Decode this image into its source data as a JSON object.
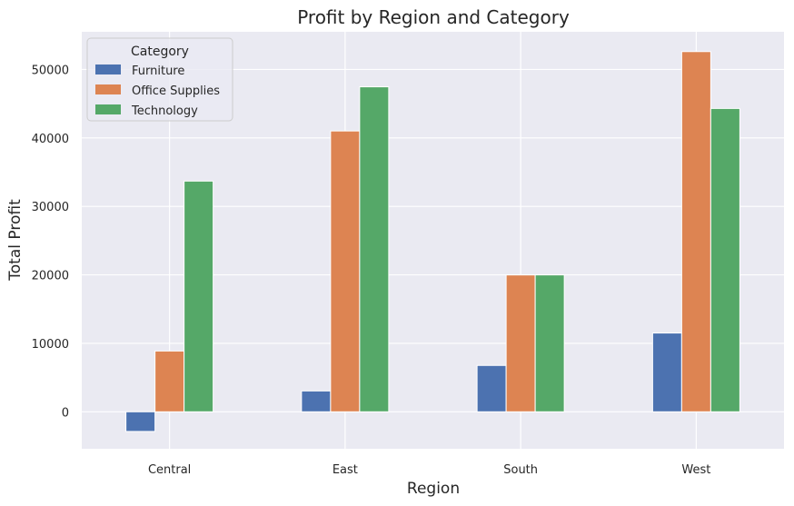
{
  "chart_data": {
    "type": "bar",
    "title": "Profit by Region and Category",
    "xlabel": "Region",
    "ylabel": "Total Profit",
    "categories": [
      "Central",
      "East",
      "South",
      "West"
    ],
    "series": [
      {
        "name": "Furniture",
        "color": "#4c72b0",
        "values": [
          -2871,
          3046,
          6771,
          11505
        ]
      },
      {
        "name": "Office Supplies",
        "color": "#dd8452",
        "values": [
          8880,
          41015,
          19986,
          52610
        ]
      },
      {
        "name": "Technology",
        "color": "#55a868",
        "values": [
          33697,
          47463,
          19992,
          44304
        ]
      }
    ],
    "yticks": [
      0,
      10000,
      20000,
      30000,
      40000,
      50000
    ],
    "ylim": [
      -5400,
      55500
    ],
    "grid": true,
    "legend": {
      "title": "Category",
      "placement": "top-left"
    },
    "background_color": "#eaeaf2"
  }
}
